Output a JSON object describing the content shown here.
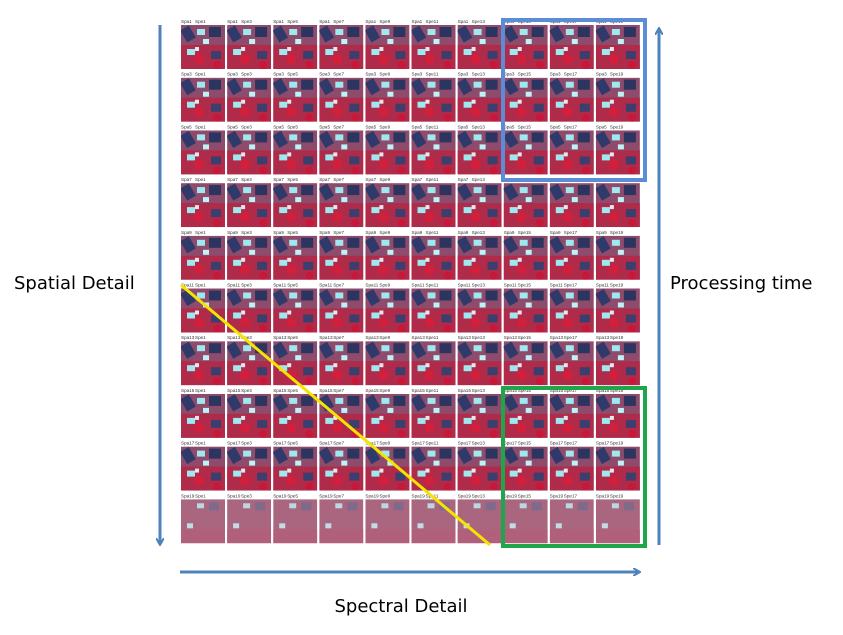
{
  "labels": {
    "spatial": "Spatial Detail",
    "processing": "Processing time",
    "spectral": "Spectral Detail"
  },
  "grid": {
    "rows": [
      "Spa1",
      "Spa3",
      "Spa5",
      "Spa7",
      "Spa9",
      "Spa11",
      "Spa13",
      "Spa15",
      "Spa17",
      "Spa19"
    ],
    "columns": [
      "Spe1",
      "Spe3",
      "Spe5",
      "Spe7",
      "Spe9",
      "Spe11",
      "Spe13",
      "Spe15",
      "Spe17",
      "Spe19"
    ]
  }
}
